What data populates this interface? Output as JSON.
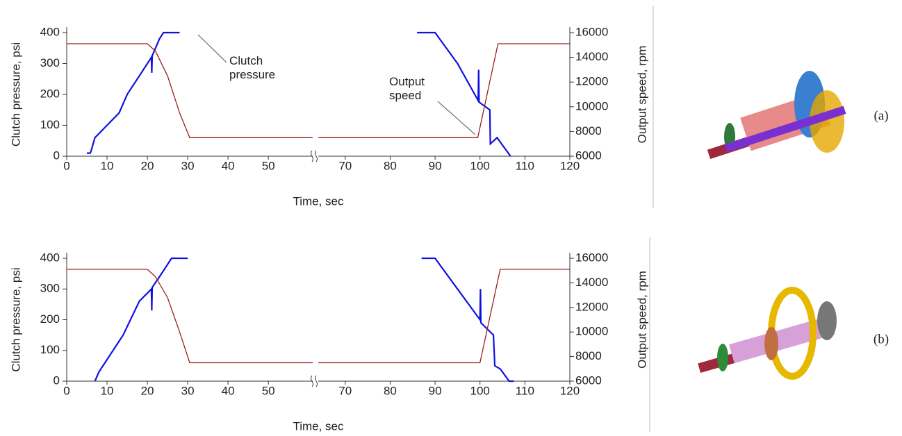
{
  "chart_data": [
    {
      "type": "line",
      "xlabel": "Time, sec",
      "ylabel": "Clutch pressure, psi",
      "y2label": "Output speed, rpm",
      "panel_label": "(a)",
      "xlim": [
        [
          0,
          61
        ],
        [
          64,
          120
        ]
      ],
      "xticks": [
        0,
        10,
        20,
        30,
        40,
        50,
        70,
        80,
        90,
        100,
        110,
        120
      ],
      "ylim": [
        0,
        400
      ],
      "yticks": [
        0,
        100,
        200,
        300,
        400
      ],
      "y2lim": [
        6000,
        16000
      ],
      "y2ticks": [
        6000,
        8000,
        10000,
        12000,
        14000,
        16000
      ],
      "series": [
        {
          "name": "Clutch pressure",
          "color": "#1010e0",
          "axis": "y",
          "x": [
            5,
            5.8,
            6,
            7,
            10,
            13,
            15,
            18,
            21,
            21.1,
            21.2,
            23,
            24,
            28,
            null,
            86,
            90,
            95,
            99.6,
            99.7,
            99.8,
            102.2,
            102.3,
            103.8,
            106.8
          ],
          "values": [
            10,
            10,
            15,
            60,
            100,
            140,
            200,
            260,
            320,
            270,
            325,
            380,
            400,
            400,
            null,
            400,
            400,
            300,
            180,
            280,
            175,
            150,
            40,
            60,
            0
          ]
        },
        {
          "name": "Output speed",
          "color": "#9b1c1c",
          "axis": "y2",
          "x": [
            0,
            20,
            22,
            25,
            28,
            30.5,
            61,
            null,
            64,
            99.5,
            104,
            120
          ],
          "values": [
            15100,
            15100,
            14500,
            12500,
            9500,
            7500,
            7500,
            null,
            7500,
            7500,
            15100,
            15100
          ]
        }
      ]
    },
    {
      "type": "line",
      "xlabel": "Time, sec",
      "ylabel": "Clutch pressure, psi",
      "y2label": "Output speed, rpm",
      "panel_label": "(b)",
      "xlim": [
        [
          0,
          61
        ],
        [
          64,
          120
        ]
      ],
      "xticks": [
        0,
        10,
        20,
        30,
        40,
        50,
        70,
        80,
        90,
        100,
        110,
        120
      ],
      "ylim": [
        0,
        400
      ],
      "yticks": [
        0,
        100,
        200,
        300,
        400
      ],
      "y2lim": [
        6000,
        16000
      ],
      "y2ticks": [
        6000,
        8000,
        10000,
        12000,
        14000,
        16000
      ],
      "series": [
        {
          "color": "#1010e0",
          "axis": "y",
          "x": [
            7,
            8,
            10,
            14,
            18,
            21,
            21.1,
            21.2,
            23,
            26,
            30,
            null,
            87,
            90,
            95,
            100,
            100.1,
            100.2,
            103,
            103.3,
            104.5,
            106.5,
            107.5
          ],
          "values": [
            0,
            30,
            70,
            150,
            260,
            300,
            230,
            305,
            340,
            400,
            400,
            null,
            400,
            400,
            300,
            200,
            300,
            190,
            150,
            50,
            40,
            0,
            0
          ]
        },
        {
          "color": "#9b1c1c",
          "axis": "y2",
          "x": [
            0,
            20,
            22,
            25,
            28,
            30.5,
            61,
            null,
            64,
            100,
            104.5,
            120
          ],
          "values": [
            15100,
            15100,
            14500,
            12800,
            10000,
            7500,
            7500,
            null,
            7500,
            7500,
            15100,
            15100
          ]
        }
      ]
    }
  ]
}
